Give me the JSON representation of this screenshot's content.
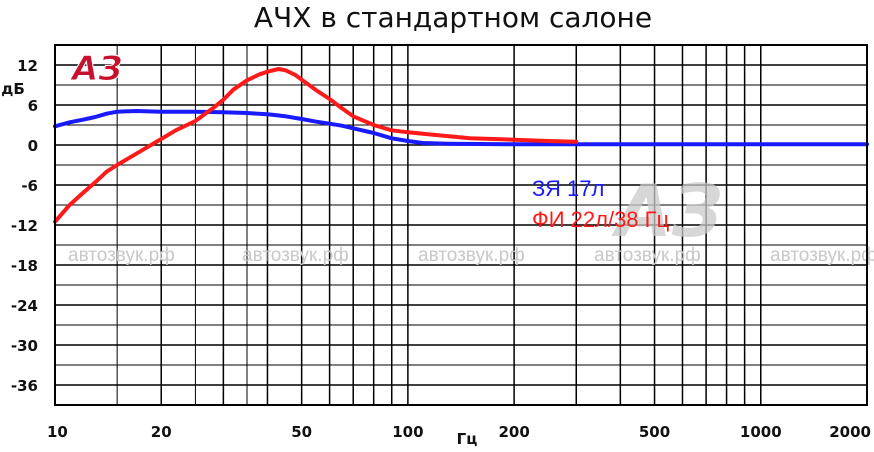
{
  "chart_data": {
    "type": "line",
    "title": "АЧХ в стандартном салоне",
    "xlabel": "Гц",
    "ylabel": "дБ",
    "x_scale": "log",
    "xlim": [
      10,
      2000
    ],
    "ylim": [
      -39,
      15
    ],
    "x_ticks": [
      {
        "value": 10,
        "label": "10"
      },
      {
        "value": 20,
        "label": "20"
      },
      {
        "value": 50,
        "label": "50"
      },
      {
        "value": 100,
        "label": "100"
      },
      {
        "value": 200,
        "label": "200"
      },
      {
        "value": 500,
        "label": "500"
      },
      {
        "value": 1000,
        "label": "1000"
      },
      {
        "value": 2000,
        "label": "2000"
      }
    ],
    "y_ticks": [
      12,
      6,
      0,
      -6,
      -12,
      -18,
      -24,
      -30,
      -36
    ],
    "grid": true,
    "legend_position": "center-right",
    "series": [
      {
        "name": "ЗЯ 17л",
        "color": "#1a1aff",
        "x": [
          10,
          11,
          12,
          13,
          14,
          15,
          17,
          20,
          25,
          30,
          35,
          40,
          45,
          50,
          55,
          60,
          65,
          70,
          80,
          90,
          100,
          110,
          130,
          200,
          500,
          1000,
          2000
        ],
        "y": [
          2.8,
          3.4,
          3.8,
          4.2,
          4.7,
          5.0,
          5.1,
          5.0,
          5.0,
          4.9,
          4.8,
          4.6,
          4.3,
          3.9,
          3.5,
          3.2,
          2.9,
          2.5,
          1.8,
          1.0,
          0.6,
          0.3,
          0.2,
          0.1,
          0.1,
          0.1,
          0.1
        ]
      },
      {
        "name": "ФИ 22л/38 Гц",
        "color": "#ff1a1a",
        "x": [
          10,
          11,
          12,
          13,
          14,
          15,
          17,
          20,
          22,
          25,
          28,
          30,
          32,
          35,
          38,
          40,
          43,
          45,
          48,
          50,
          55,
          60,
          65,
          70,
          80,
          90,
          100,
          120,
          150,
          200,
          250,
          300
        ],
        "y": [
          -11.5,
          -9.0,
          -7.2,
          -5.6,
          -4.0,
          -3.0,
          -1.3,
          0.9,
          2.2,
          3.6,
          5.5,
          6.8,
          8.3,
          9.7,
          10.6,
          11.0,
          11.4,
          11.2,
          10.5,
          9.8,
          8.2,
          6.9,
          5.5,
          4.3,
          3.0,
          2.2,
          1.9,
          1.5,
          1.0,
          0.8,
          0.6,
          0.5
        ]
      }
    ]
  },
  "watermark": {
    "logo_text": "АЗ",
    "logo_color": "#c8102e",
    "text": "автозвук.рф"
  },
  "colors": {
    "grid": "#000000",
    "background": "#ffffff"
  }
}
